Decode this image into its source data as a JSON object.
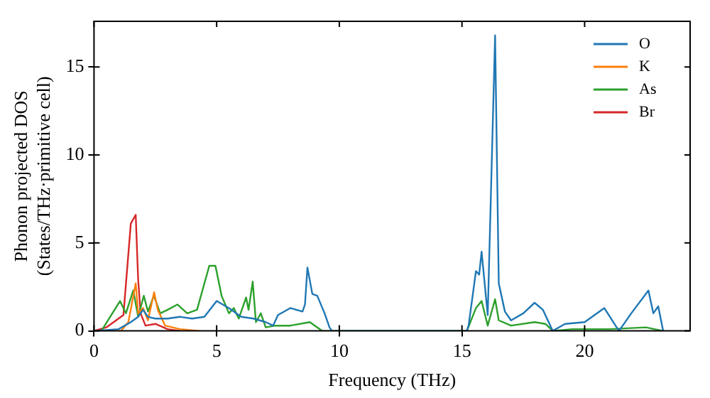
{
  "chart_data": {
    "type": "line",
    "xlabel": "Frequency (THz)",
    "ylabel": "Phonon projected DOS\n(States/THz·primitive cell)",
    "xlim": [
      0,
      24.3
    ],
    "ylim": [
      0,
      17.6
    ],
    "xticks": [
      0,
      5,
      10,
      15,
      20
    ],
    "yticks": [
      0,
      5,
      10,
      15
    ],
    "grid": false,
    "legend": "top right",
    "marker": "none",
    "line_style": "solid",
    "series": [
      {
        "name": "O",
        "color": "#1f77b4",
        "x": [
          0,
          1,
          1.5,
          1.8,
          2,
          2.2,
          2.5,
          3,
          3.5,
          4,
          4.5,
          5,
          5.5,
          6,
          6.5,
          7,
          7.3,
          7.5,
          8,
          8.5,
          8.6,
          8.7,
          8.9,
          9.1,
          9.4,
          9.6,
          9.7,
          15.2,
          15.27,
          15.57,
          15.7,
          15.8,
          16.05,
          16.35,
          16.5,
          16.75,
          17,
          17.5,
          17.96,
          18.3,
          18.7,
          19.2,
          20,
          20.8,
          21.4,
          21.9,
          22.6,
          22.8,
          23,
          23.2
        ],
        "values": [
          0,
          0.1,
          0.5,
          0.8,
          1.2,
          0.8,
          0.7,
          0.7,
          0.8,
          0.7,
          0.8,
          1.7,
          1.3,
          0.8,
          0.7,
          0.5,
          0.3,
          0.9,
          1.3,
          1.1,
          1.5,
          3.6,
          2.1,
          2,
          1,
          0.2,
          0,
          0,
          0.3,
          3.4,
          3.2,
          4.5,
          0.9,
          16.8,
          2.7,
          1.1,
          0.6,
          1,
          1.6,
          1.2,
          0,
          0.4,
          0.5,
          1.3,
          0,
          1,
          2.3,
          1,
          1.4,
          0
        ]
      },
      {
        "name": "K",
        "color": "#ff7f0e",
        "x": [
          0,
          1.1,
          1.4,
          1.7,
          1.8,
          2,
          2.2,
          2.45,
          2.6,
          2.9,
          3.5,
          4.3
        ],
        "values": [
          0,
          0,
          0.5,
          2.7,
          1,
          1.3,
          0.6,
          2.2,
          1.2,
          0.3,
          0.1,
          0
        ]
      },
      {
        "name": "As",
        "color": "#2ca02c",
        "x": [
          0,
          0.3,
          1.06,
          1.3,
          1.6,
          1.8,
          2.03,
          2.2,
          2.44,
          2.7,
          3,
          3.4,
          3.8,
          4.2,
          4.7,
          4.95,
          5.2,
          5.5,
          5.7,
          5.9,
          6.2,
          6.3,
          6.47,
          6.6,
          6.8,
          7,
          7.4,
          8,
          8.8,
          9,
          9.3,
          15.2,
          15.57,
          15.8,
          16.05,
          16.35,
          16.5,
          17,
          17.96,
          18.4,
          18.7,
          19.5,
          21,
          22.5,
          23.2
        ],
        "values": [
          0,
          0,
          1.7,
          1,
          2.3,
          0.8,
          2,
          1.1,
          2,
          1,
          1.2,
          1.5,
          1,
          1.2,
          3.7,
          3.7,
          2,
          1,
          1.3,
          0.7,
          1.9,
          1.2,
          2.8,
          0.5,
          1,
          0.2,
          0.3,
          0.3,
          0.5,
          0.3,
          0,
          0,
          1.3,
          1.7,
          0.3,
          1.8,
          0.6,
          0.3,
          0.5,
          0.4,
          0,
          0.1,
          0.1,
          0.2,
          0
        ]
      },
      {
        "name": "Br",
        "color": "#d62728",
        "x": [
          0,
          0.5,
          1.2,
          1.5,
          1.7,
          1.8,
          1.9,
          2.1,
          2.5,
          3,
          3.5
        ],
        "values": [
          0,
          0.2,
          0.9,
          6.1,
          6.6,
          2.9,
          1,
          0.3,
          0.4,
          0.1,
          0
        ]
      }
    ]
  }
}
